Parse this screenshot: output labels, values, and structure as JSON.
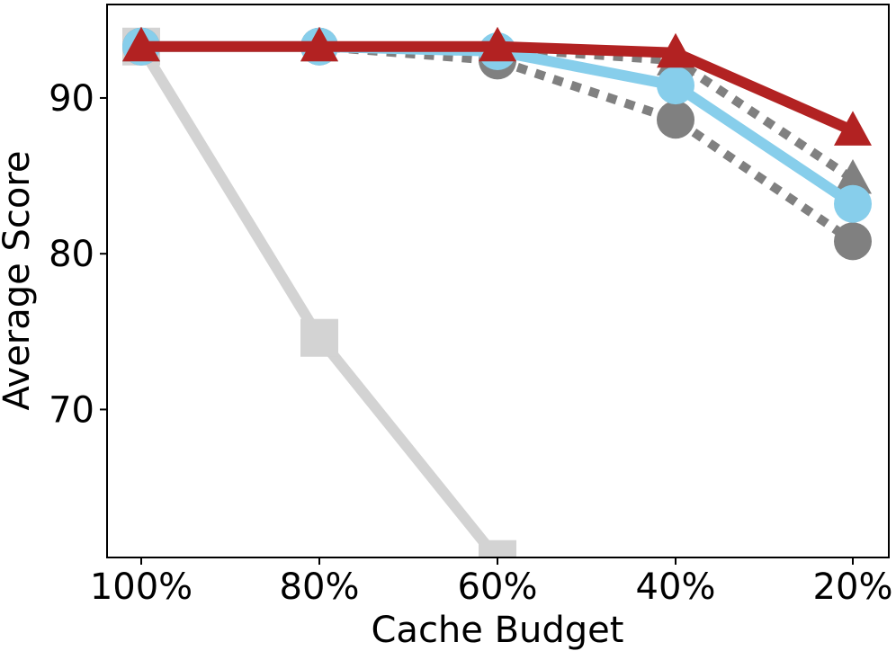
{
  "chart_data": {
    "type": "line",
    "xlabel": "Cache Budget",
    "ylabel": "Average Score",
    "categories": [
      "100%",
      "80%",
      "60%",
      "40%",
      "20%"
    ],
    "ylim": [
      60.5,
      96
    ],
    "yticks": [
      70,
      80,
      90
    ],
    "grid": false,
    "legend": "none",
    "series": [
      {
        "color": "#d3d3d3",
        "line_style": "solid",
        "marker": "square",
        "values": [
          93.3,
          74.6,
          60.4,
          null,
          null
        ]
      },
      {
        "color": "#808080",
        "line_style": "dotted",
        "marker": "circle",
        "values": [
          93.3,
          93.3,
          92.4,
          88.6,
          80.8
        ]
      },
      {
        "color": "#808080",
        "line_style": "dotted",
        "marker": "triangle",
        "values": [
          93.3,
          93.3,
          93.2,
          92.4,
          84.8
        ]
      },
      {
        "color": "#87ceeb",
        "line_style": "solid",
        "marker": "circle",
        "values": [
          93.3,
          93.3,
          93.0,
          90.8,
          83.2
        ]
      },
      {
        "color": "#b22222",
        "line_style": "solid",
        "marker": "triangle",
        "values": [
          93.3,
          93.3,
          93.3,
          92.9,
          87.9
        ]
      }
    ]
  }
}
